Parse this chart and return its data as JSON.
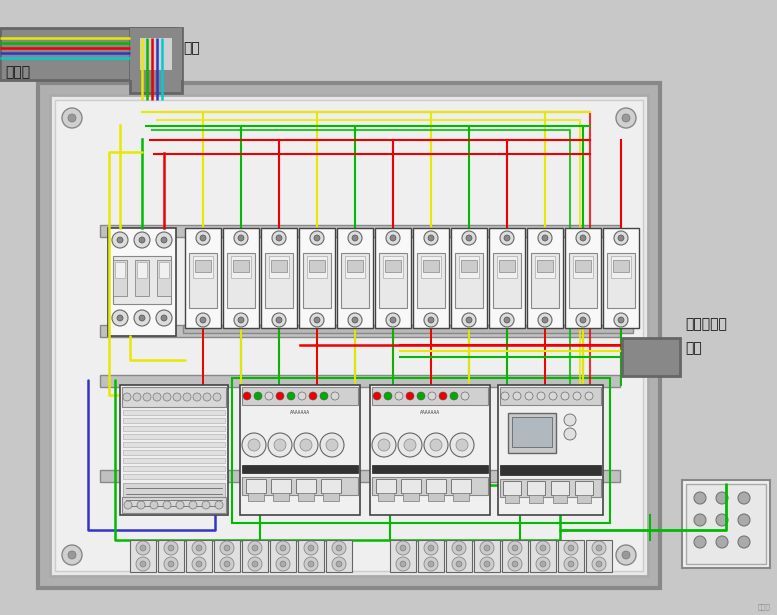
{
  "fig_w": 7.77,
  "fig_h": 6.15,
  "dpi": 100,
  "bg_outer": "#c8c8c8",
  "bg_panel_outer": "#b8b8b8",
  "bg_panel_inner": "#e8e8e8",
  "bg_panel_white": "#f0f0f0",
  "conduit_color": "#888888",
  "text_color": "#111111",
  "label_3phase": "三相电",
  "label_conduit_top": "线管",
  "label_right_top": "至灯光回路",
  "label_right_conduit": "线管",
  "wc_yellow": "#e8e800",
  "wc_green": "#00bb00",
  "wc_red": "#ee0000",
  "wc_blue": "#3333cc",
  "wc_cyan": "#00cccc",
  "wc_orange": "#ff8800",
  "breaker_fc": "#f8f8f8",
  "breaker_ec": "#444444",
  "module_fc": "#f0f0f0",
  "module_ec": "#444444",
  "terminal_fc": "#e0e0e0",
  "terminal_ec": "#666666"
}
